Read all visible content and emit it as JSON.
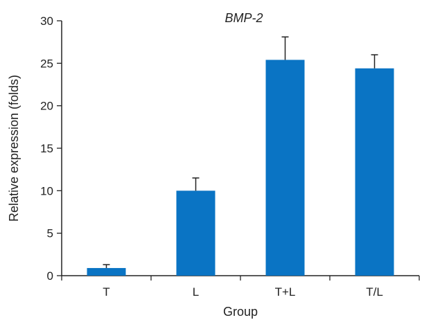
{
  "chart_data": {
    "type": "bar",
    "title": "BMP-2",
    "xlabel": "Group",
    "ylabel": "Relative expression (folds)",
    "categories": [
      "T",
      "L",
      "T+L",
      "T/L"
    ],
    "values": [
      0.9,
      10.0,
      25.4,
      24.4
    ],
    "errors": [
      0.4,
      1.5,
      2.7,
      1.6
    ],
    "ylim": [
      0,
      30
    ],
    "yticks": [
      0,
      5,
      10,
      15,
      20,
      25,
      30
    ],
    "bar_color": "#0a74c4",
    "grid": false,
    "legend": "none"
  }
}
